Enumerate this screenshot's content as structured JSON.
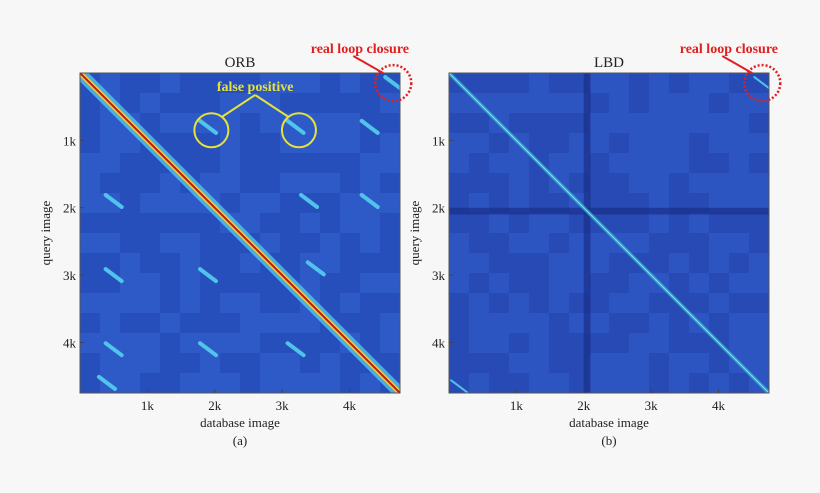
{
  "chart_data": [
    {
      "type": "heatmap",
      "title": "ORB",
      "xlabel": "database image",
      "ylabel": "query image",
      "caption": "(a)",
      "xlim": [
        0,
        4750
      ],
      "ylim": [
        0,
        4750
      ],
      "xticks": [
        {
          "v": 1000,
          "label": "1k"
        },
        {
          "v": 2000,
          "label": "2k"
        },
        {
          "v": 3000,
          "label": "3k"
        },
        {
          "v": 4000,
          "label": "4k"
        }
      ],
      "yticks": [
        {
          "v": 1000,
          "label": "1k"
        },
        {
          "v": 2000,
          "label": "2k"
        },
        {
          "v": 3000,
          "label": "3k"
        },
        {
          "v": 4000,
          "label": "4k"
        }
      ],
      "colormap": [
        "#1f3fa8",
        "#2d66d6",
        "#3fc3e6",
        "#e6e64a",
        "#c81e10"
      ],
      "diagonal_color": "#c01a10",
      "off_diagonal_blobs": [
        {
          "x": 1900,
          "y": 800
        },
        {
          "x": 3200,
          "y": 800
        },
        {
          "x": 4300,
          "y": 800
        },
        {
          "x": 500,
          "y": 1900
        },
        {
          "x": 1900,
          "y": 1900
        },
        {
          "x": 3400,
          "y": 1900
        },
        {
          "x": 4300,
          "y": 1900
        },
        {
          "x": 500,
          "y": 3000
        },
        {
          "x": 1900,
          "y": 3000
        },
        {
          "x": 3500,
          "y": 2900
        },
        {
          "x": 500,
          "y": 4100
        },
        {
          "x": 1900,
          "y": 4100
        },
        {
          "x": 3200,
          "y": 4100
        },
        {
          "x": 400,
          "y": 4600
        },
        {
          "x": 4650,
          "y": 150
        }
      ],
      "annotations": [
        {
          "text": "false positive",
          "color": "#e6e23a",
          "targets": [
            {
              "x": 1950,
              "y": 850
            },
            {
              "x": 3250,
              "y": 850
            }
          ]
        },
        {
          "text": "real loop closure",
          "color": "#e02020",
          "target": {
            "x": 4650,
            "y": 150
          }
        }
      ]
    },
    {
      "type": "heatmap",
      "title": "LBD",
      "xlabel": "database image",
      "ylabel": "query image",
      "caption": "(b)",
      "xlim": [
        0,
        4750
      ],
      "ylim": [
        0,
        4750
      ],
      "xticks": [
        {
          "v": 1000,
          "label": "1k"
        },
        {
          "v": 2000,
          "label": "2k"
        },
        {
          "v": 3000,
          "label": "3k"
        },
        {
          "v": 4000,
          "label": "4k"
        }
      ],
      "yticks": [
        {
          "v": 1000,
          "label": "1k"
        },
        {
          "v": 2000,
          "label": "2k"
        },
        {
          "v": 3000,
          "label": "3k"
        },
        {
          "v": 4000,
          "label": "4k"
        }
      ],
      "colormap": [
        "#1f3fa8",
        "#2d66d6",
        "#3fc3e6",
        "#e6e64a",
        "#c81e10"
      ],
      "diagonal_color": "#6fe0e0",
      "dark_bands": [
        2000,
        2100
      ],
      "off_diagonal_blobs": [
        {
          "x": 150,
          "y": 4650
        },
        {
          "x": 4650,
          "y": 150
        }
      ],
      "annotations": [
        {
          "text": "real loop closure",
          "color": "#e02020",
          "target": {
            "x": 4650,
            "y": 150
          }
        }
      ]
    }
  ]
}
